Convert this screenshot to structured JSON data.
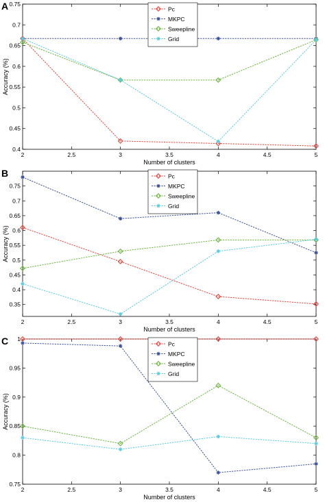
{
  "colors": {
    "Pc": "#e8423a",
    "MKPC": "#3a4f9c",
    "Sweepline": "#69b43d",
    "Grid": "#5ccbe0",
    "axis": "#000000",
    "text": "#000000"
  },
  "markers": {
    "Pc": "diamond-open",
    "MKPC": "star",
    "Sweepline": "diamond-open",
    "Grid": "star"
  },
  "chart_data": [
    {
      "panel_label": "A",
      "type": "line",
      "xlabel": "Number of clusters",
      "ylabel": "Accuracy (%)",
      "xlim": [
        2,
        5
      ],
      "ylim": [
        0.4,
        0.75
      ],
      "xticks": [
        "2",
        "2.5",
        "3",
        "3.5",
        "4",
        "4.5",
        "5"
      ],
      "yticks": [
        "0.4",
        "0.45",
        "0.5",
        "0.55",
        "0.6",
        "0.65",
        "0.7",
        "0.75"
      ],
      "legend_position": "top-center",
      "x": [
        2,
        3,
        4,
        5
      ],
      "series": [
        {
          "name": "Pc",
          "values": [
            0.667,
            0.42,
            0.414,
            0.408
          ]
        },
        {
          "name": "MKPC",
          "values": [
            0.667,
            0.667,
            0.667,
            0.667
          ]
        },
        {
          "name": "Sweepline",
          "values": [
            0.658,
            0.567,
            0.567,
            0.664
          ]
        },
        {
          "name": "Grid",
          "values": [
            0.667,
            0.567,
            0.419,
            0.664
          ]
        }
      ]
    },
    {
      "panel_label": "B",
      "type": "line",
      "xlabel": "Number of clusters",
      "ylabel": "Accuracy (%)",
      "xlim": [
        2,
        5
      ],
      "ylim": [
        0.31,
        0.8
      ],
      "xticks": [
        "2",
        "2.5",
        "3",
        "3.5",
        "4",
        "4.5",
        "5"
      ],
      "yticks": [
        "0.35",
        "0.4",
        "0.45",
        "0.5",
        "0.55",
        "0.6",
        "0.65",
        "0.7",
        "0.75"
      ],
      "legend_position": "top-center",
      "x": [
        2,
        3,
        4,
        5
      ],
      "series": [
        {
          "name": "Pc",
          "values": [
            0.61,
            0.495,
            0.377,
            0.352
          ]
        },
        {
          "name": "MKPC",
          "values": [
            0.78,
            0.64,
            0.66,
            0.525
          ]
        },
        {
          "name": "Sweepline",
          "values": [
            0.472,
            0.53,
            0.568,
            0.568
          ]
        },
        {
          "name": "Grid",
          "values": [
            0.42,
            0.318,
            0.53,
            0.57
          ]
        }
      ]
    },
    {
      "panel_label": "C",
      "type": "line",
      "xlabel": "Number of clusters",
      "ylabel": "Accuracy (%)",
      "xlim": [
        2,
        5
      ],
      "ylim": [
        0.75,
        1.0
      ],
      "xticks": [
        "2",
        "2.5",
        "3",
        "3.5",
        "4",
        "4.5",
        "5"
      ],
      "yticks": [
        "0.75",
        "0.8",
        "0.85",
        "0.9",
        "0.95",
        "1"
      ],
      "legend_position": "top-center",
      "x": [
        2,
        3,
        4,
        5
      ],
      "series": [
        {
          "name": "Pc",
          "values": [
            1.0,
            1.0,
            1.0,
            1.0
          ]
        },
        {
          "name": "MKPC",
          "values": [
            0.993,
            0.988,
            0.77,
            0.785
          ]
        },
        {
          "name": "Sweepline",
          "values": [
            0.85,
            0.82,
            0.92,
            0.83
          ]
        },
        {
          "name": "Grid",
          "values": [
            0.83,
            0.81,
            0.832,
            0.82
          ]
        }
      ]
    }
  ]
}
